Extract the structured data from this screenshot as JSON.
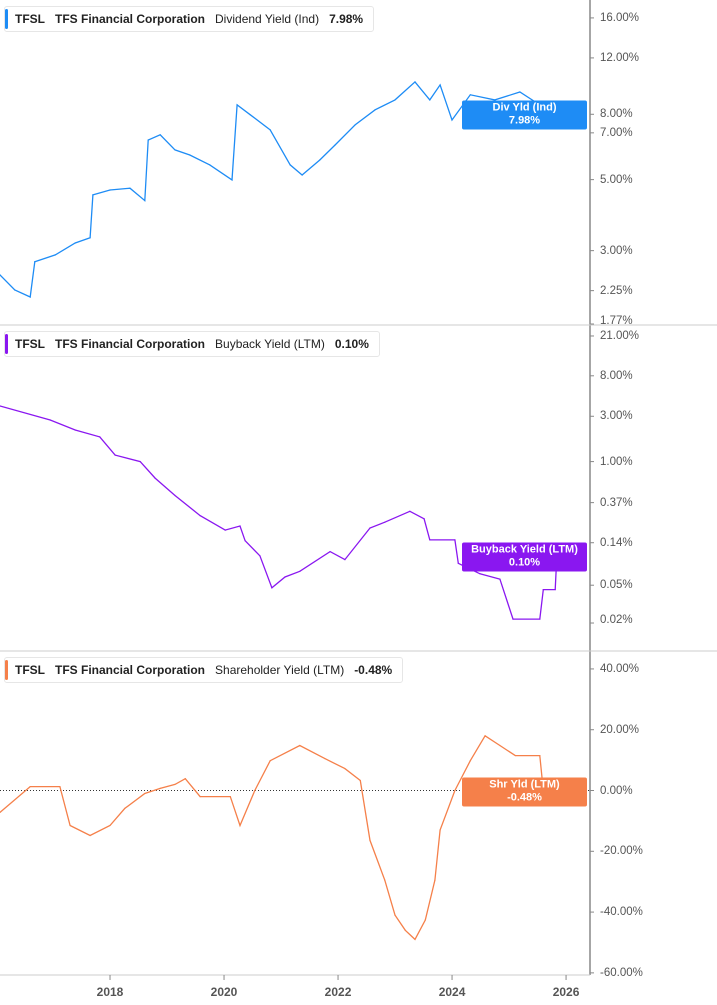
{
  "chart_data": [
    {
      "type": "line",
      "ticker": "TFSL",
      "company": "TFS Financial Corporation",
      "metric": "Dividend Yield (Ind)",
      "current": "7.98%",
      "badge_label": "Div Yld (Ind)",
      "color": "#1e8cf5",
      "scale": "log",
      "ylim": [
        1.77,
        18.2
      ],
      "yticks": [
        {
          "v": 16,
          "label": "16.00%"
        },
        {
          "v": 12,
          "label": "12.00%"
        },
        {
          "v": 8,
          "label": "8.00%"
        },
        {
          "v": 7,
          "label": "7.00%"
        },
        {
          "v": 5,
          "label": "5.00%"
        },
        {
          "v": 3,
          "label": "3.00%"
        },
        {
          "v": 2.25,
          "label": "2.25%"
        },
        {
          "v": 1.77,
          "label": "1.77%"
        }
      ],
      "x": [
        2016.07,
        2016.33,
        2016.6,
        2016.68,
        2017.04,
        2017.39,
        2017.65,
        2017.7,
        2018.0,
        2018.35,
        2018.61,
        2018.67,
        2018.88,
        2019.14,
        2019.4,
        2019.75,
        2020.14,
        2020.23,
        2020.46,
        2020.81,
        2021.16,
        2021.37,
        2021.68,
        2021.95,
        2022.3,
        2022.65,
        2023.0,
        2023.35,
        2023.61,
        2023.79,
        2024.0,
        2024.32,
        2024.75,
        2025.19,
        2025.54,
        2025.89,
        2026.07
      ],
      "y": [
        2.52,
        2.26,
        2.15,
        2.77,
        2.91,
        3.17,
        3.29,
        4.48,
        4.64,
        4.7,
        4.3,
        6.65,
        6.9,
        6.19,
        5.97,
        5.56,
        4.99,
        8.56,
        7.97,
        7.15,
        5.56,
        5.17,
        5.76,
        6.42,
        7.41,
        8.26,
        8.87,
        10.1,
        8.87,
        9.88,
        7.68,
        9.2,
        8.87,
        9.39,
        8.56,
        8.56,
        7.98
      ]
    },
    {
      "type": "line",
      "ticker": "TFSL",
      "company": "TFS Financial Corporation",
      "metric": "Buyback Yield (LTM)",
      "current": "0.10%",
      "badge_label": "Buyback Yield (LTM)",
      "color": "#8a17f0",
      "scale": "log",
      "ylim": [
        0.0104,
        27.4
      ],
      "yticks": [
        {
          "v": 21,
          "label": "21.00%"
        },
        {
          "v": 8,
          "label": "8.00%"
        },
        {
          "v": 3,
          "label": "3.00%"
        },
        {
          "v": 1,
          "label": "1.00%"
        },
        {
          "v": 0.37,
          "label": "0.37%"
        },
        {
          "v": 0.14,
          "label": "0.14%"
        },
        {
          "v": 0.05,
          "label": "0.05%"
        },
        {
          "v": 0.02,
          "label": "0.02%"
        }
      ],
      "x": [
        2016.07,
        2016.95,
        2017.39,
        2017.82,
        2018.09,
        2018.53,
        2018.79,
        2019.14,
        2019.58,
        2020.02,
        2020.28,
        2020.37,
        2020.63,
        2020.84,
        2021.07,
        2021.33,
        2021.86,
        2022.12,
        2022.56,
        2022.82,
        2023.26,
        2023.51,
        2023.61,
        2024.05,
        2024.11,
        2024.49,
        2024.84,
        2025.07,
        2025.54,
        2025.6,
        2025.81,
        2025.84,
        2026.07
      ],
      "y": [
        3.85,
        2.74,
        2.15,
        1.82,
        1.17,
        1.0,
        0.67,
        0.44,
        0.27,
        0.19,
        0.21,
        0.147,
        0.102,
        0.047,
        0.061,
        0.07,
        0.113,
        0.093,
        0.2,
        0.23,
        0.3,
        0.25,
        0.15,
        0.15,
        0.085,
        0.066,
        0.058,
        0.022,
        0.022,
        0.045,
        0.045,
        0.104,
        0.1
      ]
    },
    {
      "type": "line",
      "ticker": "TFSL",
      "company": "TFS Financial Corporation",
      "metric": "Shareholder Yield (LTM)",
      "current": "-0.48%",
      "badge_label": "Shr Yld (LTM)",
      "color": "#f5804a",
      "scale": "linear",
      "ylim": [
        -60.7,
        45.9
      ],
      "zero_line": true,
      "yticks": [
        {
          "v": 40,
          "label": "40.00%"
        },
        {
          "v": 20,
          "label": "20.00%"
        },
        {
          "v": 0,
          "label": "0.00%"
        },
        {
          "v": -20,
          "label": "-20.00%"
        },
        {
          "v": -40,
          "label": "-40.00%"
        },
        {
          "v": -60,
          "label": "-60.00%"
        }
      ],
      "x": [
        2016.07,
        2016.6,
        2017.12,
        2017.3,
        2017.65,
        2018.0,
        2018.26,
        2018.61,
        2018.88,
        2019.14,
        2019.32,
        2019.58,
        2020.11,
        2020.28,
        2020.54,
        2020.81,
        2021.33,
        2021.77,
        2022.12,
        2022.39,
        2022.56,
        2022.82,
        2023.0,
        2023.18,
        2023.35,
        2023.53,
        2023.7,
        2023.79,
        2024.05,
        2024.32,
        2024.58,
        2024.84,
        2025.11,
        2025.54,
        2025.6,
        2026.07
      ],
      "y": [
        -7.2,
        1.3,
        1.3,
        -11.5,
        -14.8,
        -11.5,
        -5.9,
        -1,
        0.7,
        2,
        3.9,
        -2,
        -2,
        -11.5,
        0,
        9.8,
        14.8,
        10.5,
        7.2,
        3.3,
        -16.4,
        -29.5,
        -41,
        -46,
        -49,
        -42.6,
        -29.5,
        -13,
        0,
        9.8,
        18,
        14.8,
        11.5,
        11.5,
        0,
        -0.48
      ]
    }
  ],
  "x_axis": {
    "range": [
      2016.07,
      2026.42
    ],
    "ticks": [
      {
        "v": 2018,
        "label": "2018"
      },
      {
        "v": 2020,
        "label": "2020"
      },
      {
        "v": 2022,
        "label": "2022"
      },
      {
        "v": 2024,
        "label": "2024"
      },
      {
        "v": 2026,
        "label": "2026"
      }
    ]
  }
}
